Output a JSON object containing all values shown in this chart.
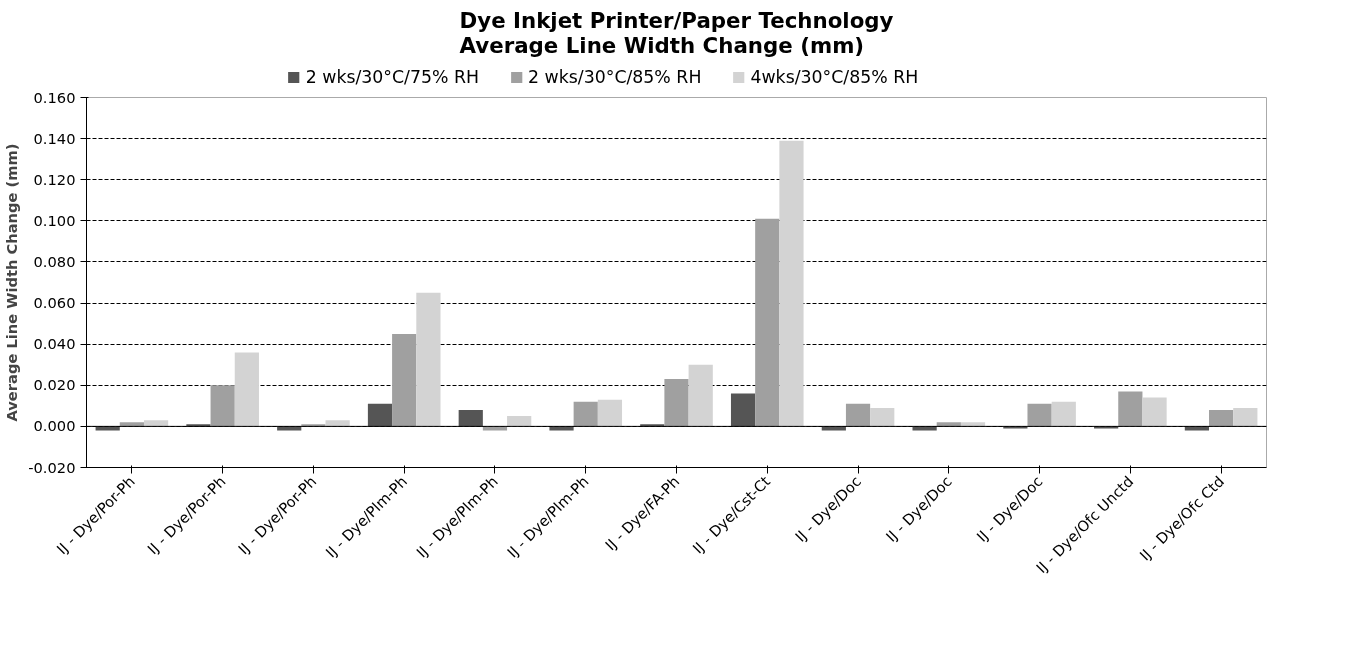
{
  "chart_data": {
    "type": "bar",
    "title": "Dye Inkjet Printer/Paper Technology\nAverage Line Width Change (mm)",
    "ylabel": "Average Line Width Change (mm)",
    "categories": [
      "IJ - Dye/Por-Ph",
      "IJ - Dye/Por-Ph",
      "IJ - Dye/Por-Ph",
      "IJ - Dye/Plm-Ph",
      "IJ - Dye/Plm-Ph",
      "IJ - Dye/Plm-Ph",
      "IJ - Dye/FA-Ph",
      "IJ - Dye/Cst-Ct",
      "IJ - Dye/Doc",
      "IJ - Dye/Doc",
      "IJ - Dye/Doc",
      "IJ - Dye/Ofc Unctd",
      "IJ - Dye/Ofc Ctd"
    ],
    "series": [
      {
        "name": "2 wks/30°C/75% RH",
        "color": "#555555",
        "values": [
          -0.002,
          0.001,
          -0.002,
          0.011,
          0.008,
          -0.002,
          0.001,
          0.016,
          -0.002,
          -0.002,
          -0.001,
          -0.001,
          -0.002
        ]
      },
      {
        "name": "2 wks/30°C/85% RH",
        "color": "#a0a0a0",
        "values": [
          0.002,
          0.02,
          0.001,
          0.045,
          -0.002,
          0.012,
          0.023,
          0.101,
          0.011,
          0.002,
          0.011,
          0.017,
          0.008
        ]
      },
      {
        "name": "4wks/30°C/85% RH",
        "color": "#d3d3d3",
        "values": [
          0.003,
          0.036,
          0.003,
          0.065,
          0.005,
          0.013,
          0.03,
          0.139,
          0.009,
          0.002,
          0.012,
          0.014,
          0.009
        ]
      }
    ],
    "ylim": [
      -0.02,
      0.16
    ],
    "yticks": [
      {
        "value": -0.02,
        "label": "-0.020"
      },
      {
        "value": 0,
        "label": "0.000"
      },
      {
        "value": 0.02,
        "label": "0.020"
      },
      {
        "value": 0.04,
        "label": "0.040"
      },
      {
        "value": 0.06,
        "label": "0.060"
      },
      {
        "value": 0.08,
        "label": "0.080"
      },
      {
        "value": 0.1,
        "label": "0.100"
      },
      {
        "value": 0.12,
        "label": "0.120"
      },
      {
        "value": 0.14,
        "label": "0.140"
      },
      {
        "value": 0.16,
        "label": "0.160"
      }
    ],
    "grid": "y",
    "legend": "top"
  }
}
